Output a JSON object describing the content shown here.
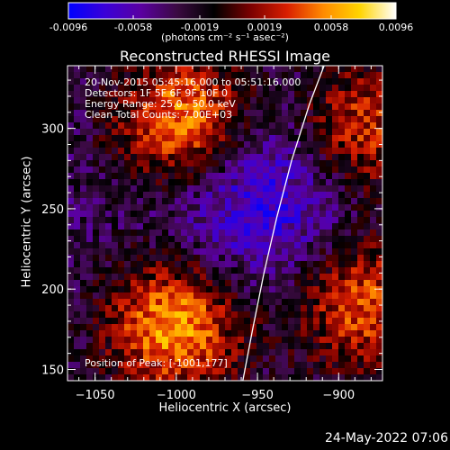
{
  "colorbar": {
    "tick_labels": [
      "-0.0096",
      "-0.0058",
      "-0.0019",
      "0.0019",
      "0.0058",
      "0.0096"
    ],
    "tick_values": [
      -0.0096,
      -0.0058,
      -0.0019,
      0.0019,
      0.0058,
      0.0096
    ],
    "range": [
      -0.0096,
      0.0096
    ],
    "unit_label": "(photons cm⁻² s⁻¹ asec⁻²)",
    "colors": [
      "#0000ff",
      "#3a00d8",
      "#5a00a0",
      "#3a0a40",
      "#000000",
      "#7a0000",
      "#d81e00",
      "#ff8a00",
      "#ffd400",
      "#ffffff"
    ]
  },
  "chart_data": {
    "type": "heatmap",
    "title": "Reconstructed RHESSI Image",
    "xlabel": "Heliocentric X (arcsec)",
    "ylabel": "Heliocentric Y (arcsec)",
    "xlim": [
      -1067,
      -873
    ],
    "ylim": [
      143,
      339
    ],
    "x_ticks": [
      -1050,
      -1000,
      -950,
      -900
    ],
    "x_tick_labels": [
      "−1050",
      "−1000",
      "−950",
      "−900"
    ],
    "y_ticks": [
      150,
      200,
      250,
      300
    ],
    "y_tick_labels": [
      "150",
      "200",
      "250",
      "300"
    ],
    "annotations": [
      "20-Nov-2015 05:45:16.000 to 05:51:16.000",
      "Detectors: 1F 5F 6F 9F 10F 0",
      "Energy Range: 25.0 - 50.0 keV",
      "Clean    Total Counts: 7.00E+03"
    ],
    "peak_label": "Position of Peak: [-1001,177]",
    "peak": [
      -1001,
      177
    ],
    "limb_curve": [
      [
        -959,
        143
      ],
      [
        -953,
        175
      ],
      [
        -946,
        210
      ],
      [
        -938,
        245
      ],
      [
        -929,
        280
      ],
      [
        -918,
        315
      ],
      [
        -909,
        339
      ]
    ],
    "sources": [
      {
        "x": -995,
        "y": 305,
        "amplitude": 0.0096
      },
      {
        "x": -1001,
        "y": 177,
        "amplitude": 0.0096
      },
      {
        "x": -885,
        "y": 300,
        "amplitude": 0.007
      },
      {
        "x": -885,
        "y": 190,
        "amplitude": 0.0075
      },
      {
        "x": -950,
        "y": 260,
        "amplitude": -0.005
      }
    ]
  },
  "footer": {
    "date": "24-May-2022 07:06"
  }
}
